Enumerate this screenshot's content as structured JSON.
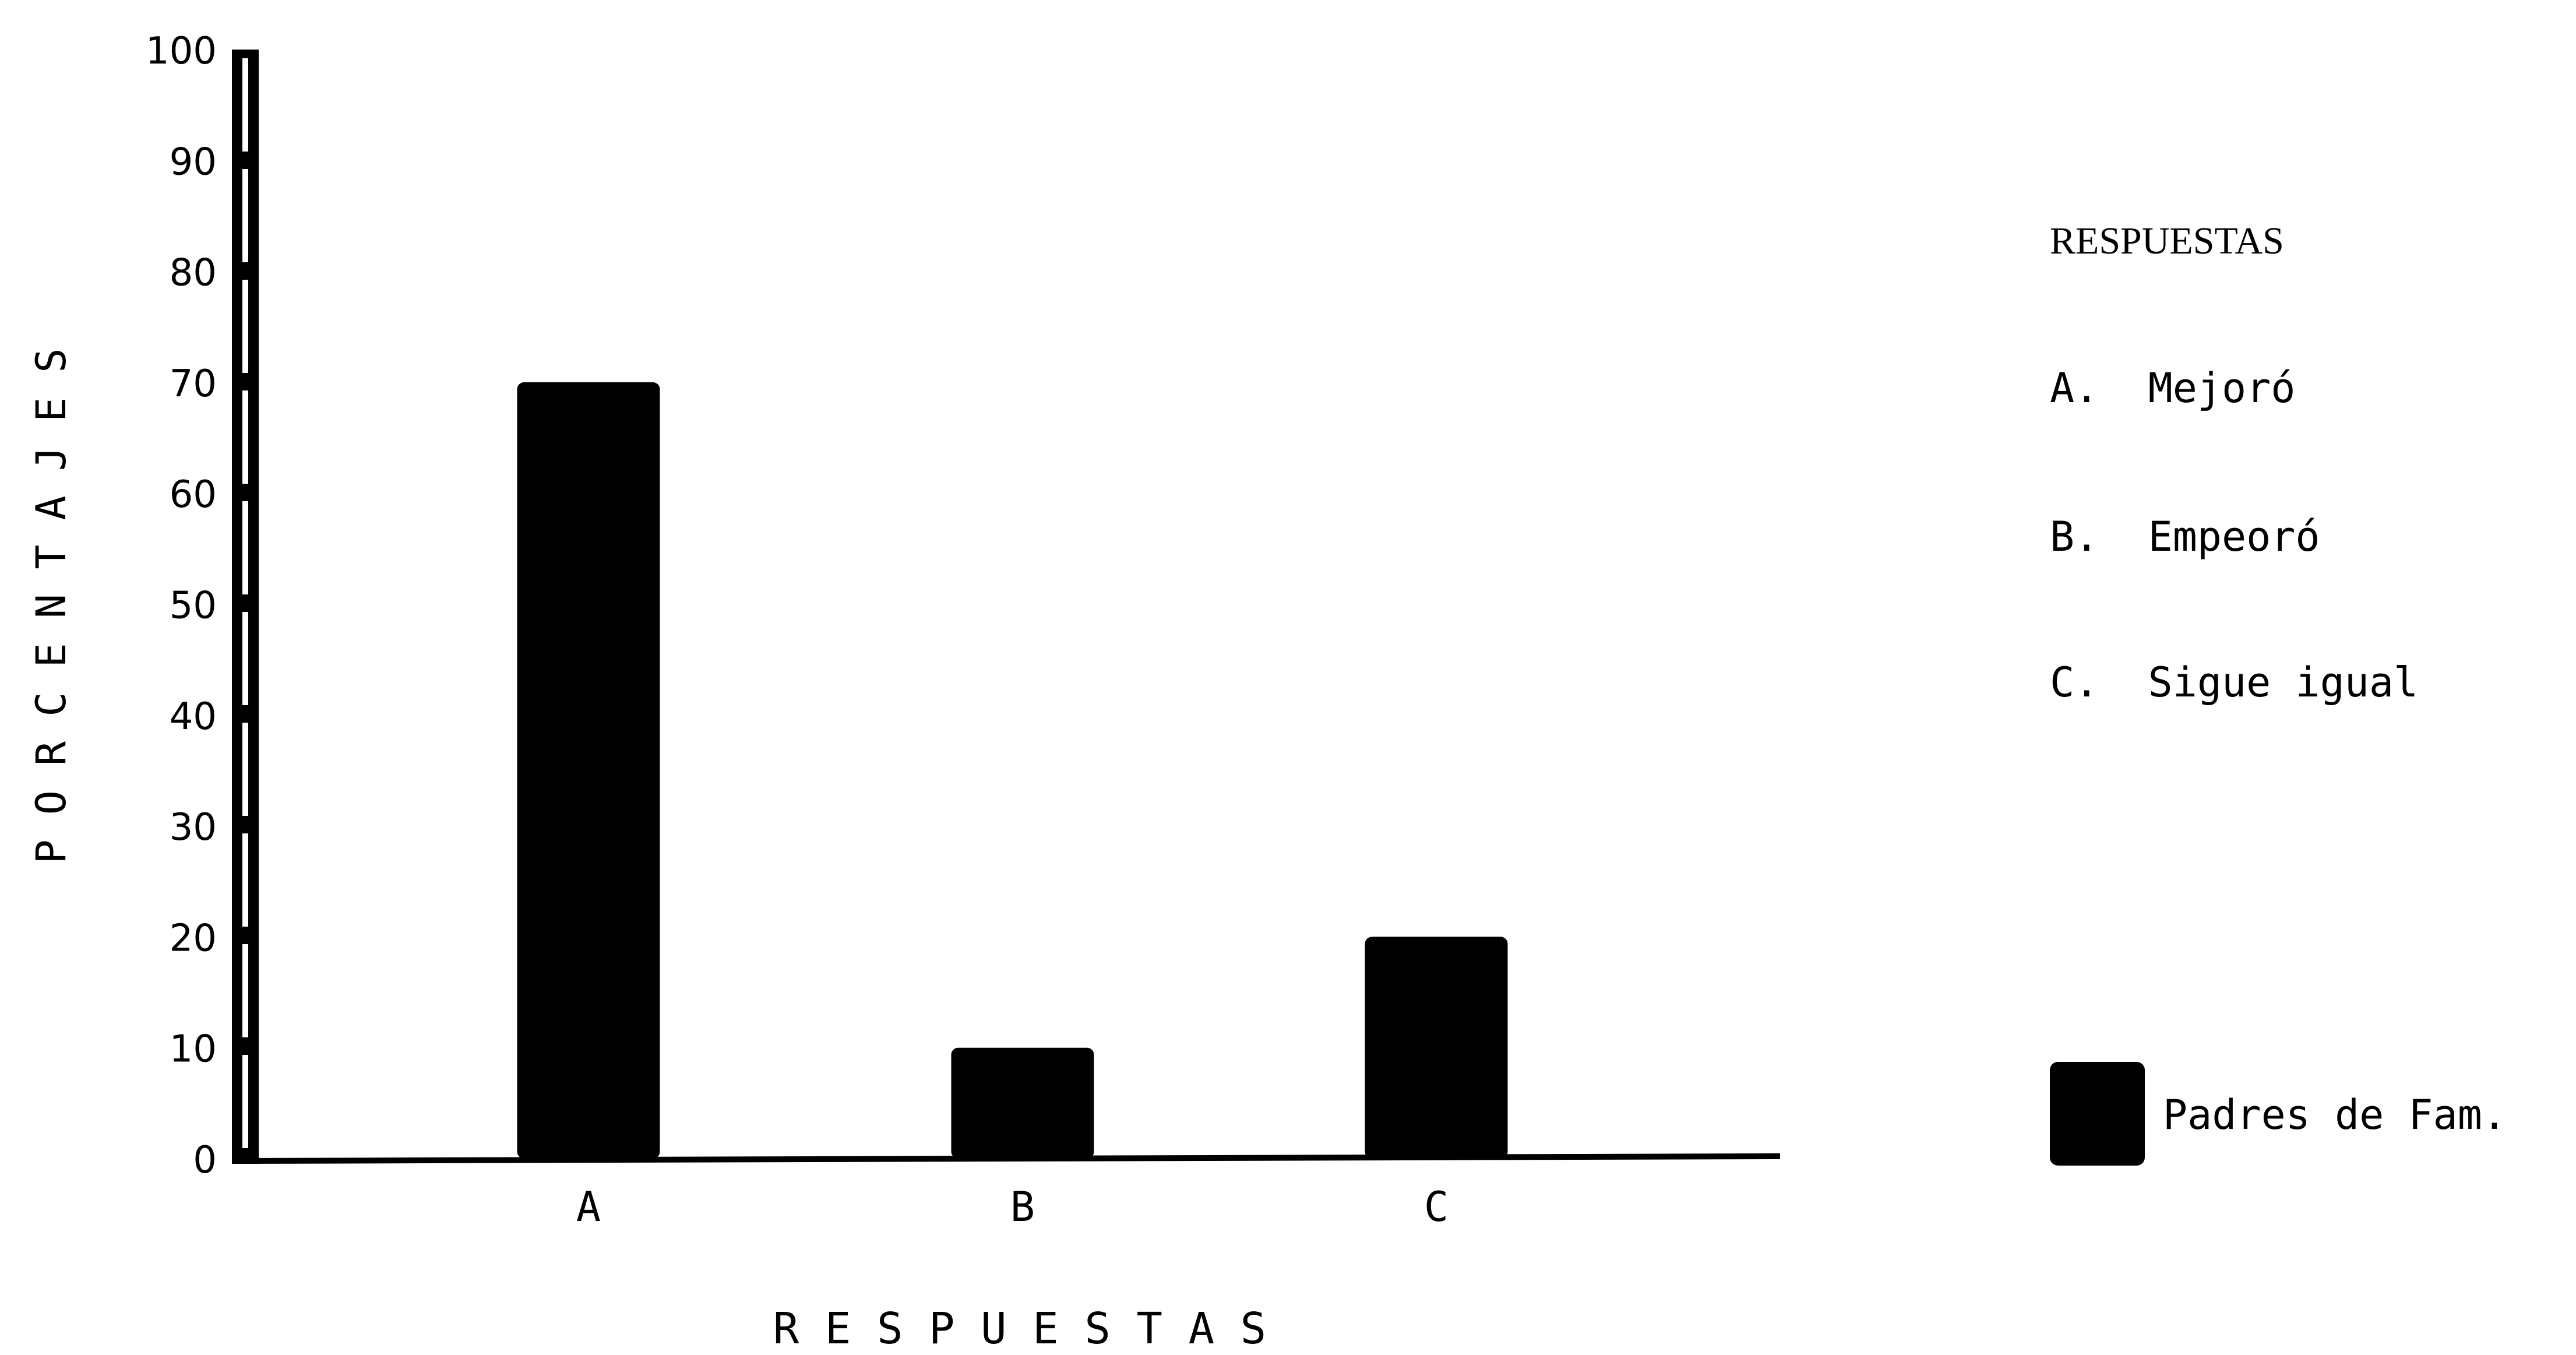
{
  "chart_data": {
    "type": "bar",
    "categories": [
      "A",
      "B",
      "C"
    ],
    "series": [
      {
        "name": "Padres de Fam.",
        "values": [
          70,
          10,
          20
        ]
      }
    ],
    "ylim": [
      0,
      100
    ],
    "yticks": [
      0,
      10,
      20,
      30,
      40,
      50,
      60,
      70,
      80,
      90,
      100
    ],
    "ylabel": "P O R C E N T A J E S",
    "xlabel": "R E S P U E S T A S",
    "grid": false,
    "legend_position": "right",
    "legend": {
      "title": "RESPUESTAS",
      "items": [
        "A.  Mejoró",
        "B.  Empeoró",
        "C.  Sigue igual"
      ],
      "series_label": "Padres de Fam."
    },
    "bar_color": "#000000"
  }
}
